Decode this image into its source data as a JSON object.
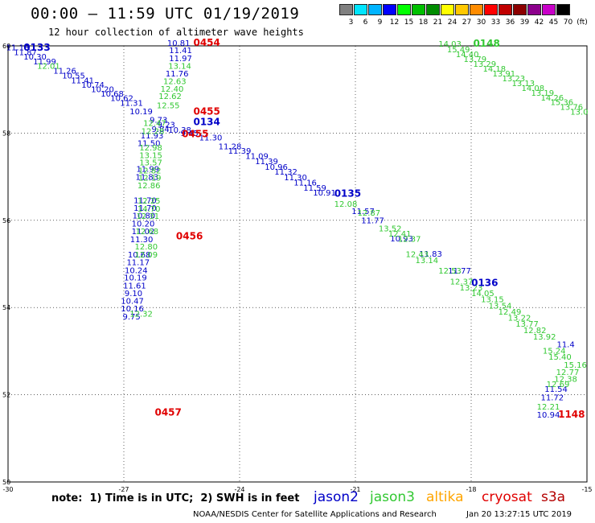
{
  "header": {
    "title": "00:00 — 11:59 UTC 01/19/2019",
    "subtitle": "12 hour collection of altimeter wave heights"
  },
  "legend": {
    "unit": "(ft)",
    "bins": [
      {
        "label": "3",
        "color": "#808080"
      },
      {
        "label": "6",
        "color": "#00e5ff"
      },
      {
        "label": "9",
        "color": "#00b4ff"
      },
      {
        "label": "12",
        "color": "#0000ff"
      },
      {
        "label": "15",
        "color": "#00ff00"
      },
      {
        "label": "18",
        "color": "#00c000"
      },
      {
        "label": "21",
        "color": "#008c00"
      },
      {
        "label": "24",
        "color": "#ffff00"
      },
      {
        "label": "27",
        "color": "#ffc800"
      },
      {
        "label": "30",
        "color": "#ff8c00"
      },
      {
        "label": "33",
        "color": "#ff0000"
      },
      {
        "label": "36",
        "color": "#c00000"
      },
      {
        "label": "39",
        "color": "#8c0000"
      },
      {
        "label": "42",
        "color": "#8c008c"
      },
      {
        "label": "45",
        "color": "#c800c8"
      },
      {
        "label": "70",
        "color": "#000000"
      }
    ]
  },
  "satellite_colors": {
    "jason2": "#0000c8",
    "jason3": "#32c832",
    "altika": "#ffa500",
    "cryosat": "#e00000",
    "s3a": "#b40000"
  },
  "map": {
    "lon_range": [
      -30,
      -15
    ],
    "lat_range": [
      50,
      60
    ],
    "lon_ticks": [
      "-30",
      "-27",
      "-24",
      "-21",
      "-18",
      "-15"
    ],
    "lat_ticks": [
      "50",
      "52",
      "54",
      "56",
      "58",
      "60"
    ],
    "tracks": [
      {
        "sat": "jason2",
        "points": [
          {
            "lon": -29.75,
            "lat": 59.9,
            "v": "11.13"
          },
          {
            "lon": -29.55,
            "lat": 59.79,
            "v": "11.87"
          },
          {
            "lon": -29.3,
            "lat": 59.69,
            "v": "10.30"
          },
          {
            "lon": -29.05,
            "lat": 59.58,
            "v": "11.99"
          },
          {
            "lon": -28.53,
            "lat": 59.36,
            "v": "11.26"
          },
          {
            "lon": -28.3,
            "lat": 59.25,
            "v": "10.55"
          },
          {
            "lon": -28.07,
            "lat": 59.14,
            "v": "11.41"
          },
          {
            "lon": -27.8,
            "lat": 59.04,
            "v": "10.74"
          },
          {
            "lon": -27.55,
            "lat": 58.94,
            "v": "10.20"
          },
          {
            "lon": -27.3,
            "lat": 58.84,
            "v": "10.68"
          },
          {
            "lon": -27.05,
            "lat": 58.74,
            "v": "10.62"
          },
          {
            "lon": -26.8,
            "lat": 58.63,
            "v": "11.31"
          },
          {
            "lon": -26.55,
            "lat": 58.43,
            "v": "10.19"
          },
          {
            "lon": -26.1,
            "lat": 58.24,
            "v": "9.73"
          },
          {
            "lon": -25.9,
            "lat": 58.13,
            "v": "9.23"
          },
          {
            "lon": -25.55,
            "lat": 58.01,
            "v": "10.38"
          },
          {
            "lon": -25.3,
            "lat": 57.93,
            "v": "9.45"
          },
          {
            "lon": -24.75,
            "lat": 57.83,
            "v": "11.30"
          },
          {
            "lon": -24.25,
            "lat": 57.63,
            "v": "11.28"
          },
          {
            "lon": -24.0,
            "lat": 57.53,
            "v": "11.39"
          },
          {
            "lon": -23.55,
            "lat": 57.41,
            "v": "11.09"
          },
          {
            "lon": -23.3,
            "lat": 57.29,
            "v": "11.39"
          },
          {
            "lon": -23.05,
            "lat": 57.16,
            "v": "10.96"
          },
          {
            "lon": -22.8,
            "lat": 57.05,
            "v": "11.32"
          },
          {
            "lon": -22.55,
            "lat": 56.92,
            "v": "11.30"
          },
          {
            "lon": -22.3,
            "lat": 56.8,
            "v": "11.16"
          },
          {
            "lon": -22.05,
            "lat": 56.68,
            "v": "11.59"
          },
          {
            "lon": -21.8,
            "lat": 56.57,
            "v": "10.91"
          },
          {
            "lon": -20.8,
            "lat": 56.14,
            "v": "11.57"
          },
          {
            "lon": -20.55,
            "lat": 55.93,
            "v": "11.77"
          },
          {
            "lon": -19.8,
            "lat": 55.52,
            "v": "10.93"
          },
          {
            "lon": -19.05,
            "lat": 55.17,
            "v": "11.83"
          },
          {
            "lon": -18.3,
            "lat": 54.78,
            "v": "11.77"
          },
          {
            "lon": -15.55,
            "lat": 53.09,
            "v": "11.4"
          },
          {
            "lon": -15.8,
            "lat": 52.07,
            "v": "11.54"
          },
          {
            "lon": -15.9,
            "lat": 51.87,
            "v": "11.72"
          },
          {
            "lon": -16.0,
            "lat": 51.48,
            "v": "10.94"
          },
          {
            "lon": -25.58,
            "lat": 60.0,
            "v": "10.81"
          },
          {
            "lon": -25.53,
            "lat": 59.83,
            "v": "11.41"
          },
          {
            "lon": -25.53,
            "lat": 59.65,
            "v": "11.97"
          },
          {
            "lon": -25.62,
            "lat": 59.3,
            "v": "11.76"
          },
          {
            "lon": -26.05,
            "lat": 58.03,
            "v": "9.84"
          },
          {
            "lon": -26.27,
            "lat": 57.88,
            "v": "11.93"
          },
          {
            "lon": -26.35,
            "lat": 57.7,
            "v": "11.50"
          },
          {
            "lon": -26.38,
            "lat": 57.11,
            "v": "11.99"
          },
          {
            "lon": -26.4,
            "lat": 56.93,
            "v": "11.83"
          },
          {
            "lon": -26.45,
            "lat": 56.39,
            "v": "11.70"
          },
          {
            "lon": -26.45,
            "lat": 56.22,
            "v": "11.70"
          },
          {
            "lon": -26.48,
            "lat": 56.04,
            "v": "10.80"
          },
          {
            "lon": -26.5,
            "lat": 55.86,
            "v": "10.20"
          },
          {
            "lon": -26.5,
            "lat": 55.68,
            "v": "11.02"
          },
          {
            "lon": -26.54,
            "lat": 55.5,
            "v": "11.30"
          },
          {
            "lon": -26.6,
            "lat": 55.15,
            "v": "10.68"
          },
          {
            "lon": -26.63,
            "lat": 54.97,
            "v": "11.17"
          },
          {
            "lon": -26.68,
            "lat": 54.79,
            "v": "10.24"
          },
          {
            "lon": -26.7,
            "lat": 54.62,
            "v": "10.19"
          },
          {
            "lon": -26.72,
            "lat": 54.44,
            "v": "11.61"
          },
          {
            "lon": -26.75,
            "lat": 54.26,
            "v": "9.10"
          },
          {
            "lon": -26.78,
            "lat": 54.09,
            "v": "10.47"
          },
          {
            "lon": -26.78,
            "lat": 53.91,
            "v": "10.16"
          },
          {
            "lon": -26.8,
            "lat": 53.73,
            "v": "9.75"
          }
        ]
      },
      {
        "sat": "jason3",
        "points": [
          {
            "lon": -28.95,
            "lat": 59.47,
            "v": "12.01"
          },
          {
            "lon": -25.55,
            "lat": 59.47,
            "v": "13.14"
          },
          {
            "lon": -25.68,
            "lat": 59.12,
            "v": "12.63"
          },
          {
            "lon": -25.75,
            "lat": 58.95,
            "v": "12.40"
          },
          {
            "lon": -25.8,
            "lat": 58.78,
            "v": "12.62"
          },
          {
            "lon": -25.85,
            "lat": 58.57,
            "v": "12.55"
          },
          {
            "lon": -26.2,
            "lat": 58.16,
            "v": "12.47"
          },
          {
            "lon": -26.25,
            "lat": 57.98,
            "v": "12.28"
          },
          {
            "lon": -26.3,
            "lat": 57.6,
            "v": "12.98"
          },
          {
            "lon": -26.3,
            "lat": 57.43,
            "v": "13.15"
          },
          {
            "lon": -26.3,
            "lat": 57.26,
            "v": "13.57"
          },
          {
            "lon": -26.33,
            "lat": 57.08,
            "v": "12.82"
          },
          {
            "lon": -26.33,
            "lat": 56.91,
            "v": "12.19"
          },
          {
            "lon": -26.35,
            "lat": 56.73,
            "v": "12.86"
          },
          {
            "lon": -26.35,
            "lat": 56.38,
            "v": "12.25"
          },
          {
            "lon": -26.35,
            "lat": 56.2,
            "v": "14.70"
          },
          {
            "lon": -26.38,
            "lat": 56.03,
            "v": "12.31"
          },
          {
            "lon": -26.4,
            "lat": 55.68,
            "v": "12.68"
          },
          {
            "lon": -26.42,
            "lat": 55.33,
            "v": "12.80"
          },
          {
            "lon": -26.42,
            "lat": 55.15,
            "v": "12.09"
          },
          {
            "lon": -26.55,
            "lat": 53.79,
            "v": "12.32"
          },
          {
            "lon": -21.25,
            "lat": 56.31,
            "v": "12.08"
          },
          {
            "lon": -20.65,
            "lat": 56.11,
            "v": "12.87"
          },
          {
            "lon": -20.1,
            "lat": 55.75,
            "v": "13.52"
          },
          {
            "lon": -19.85,
            "lat": 55.63,
            "v": "12.41"
          },
          {
            "lon": -19.6,
            "lat": 55.51,
            "v": "12.37"
          },
          {
            "lon": -19.4,
            "lat": 55.16,
            "v": "12.43"
          },
          {
            "lon": -19.15,
            "lat": 55.02,
            "v": "13.14"
          },
          {
            "lon": -18.55,
            "lat": 54.78,
            "v": "12.53"
          },
          {
            "lon": -18.25,
            "lat": 54.53,
            "v": "12.37"
          },
          {
            "lon": -18.0,
            "lat": 54.39,
            "v": "13.23"
          },
          {
            "lon": -17.7,
            "lat": 54.26,
            "v": "14.05"
          },
          {
            "lon": -17.45,
            "lat": 54.12,
            "v": "13.15"
          },
          {
            "lon": -17.25,
            "lat": 53.98,
            "v": "13.54"
          },
          {
            "lon": -17.0,
            "lat": 53.84,
            "v": "12.49"
          },
          {
            "lon": -16.75,
            "lat": 53.7,
            "v": "13.22"
          },
          {
            "lon": -16.55,
            "lat": 53.56,
            "v": "13.77"
          },
          {
            "lon": -16.35,
            "lat": 53.41,
            "v": "12.82"
          },
          {
            "lon": -16.1,
            "lat": 53.27,
            "v": "13.92"
          },
          {
            "lon": -15.85,
            "lat": 52.94,
            "v": "15.24"
          },
          {
            "lon": -15.7,
            "lat": 52.8,
            "v": "15.40"
          },
          {
            "lon": -15.3,
            "lat": 52.62,
            "v": "15.16"
          },
          {
            "lon": -15.5,
            "lat": 52.45,
            "v": "12.77"
          },
          {
            "lon": -15.55,
            "lat": 52.3,
            "v": "12.38"
          },
          {
            "lon": -15.75,
            "lat": 52.18,
            "v": "12.69"
          },
          {
            "lon": -16.0,
            "lat": 51.66,
            "v": "12.21"
          },
          {
            "lon": -18.55,
            "lat": 59.98,
            "v": "14.03"
          },
          {
            "lon": -18.33,
            "lat": 59.85,
            "v": "15.49"
          },
          {
            "lon": -18.1,
            "lat": 59.74,
            "v": "14.40"
          },
          {
            "lon": -17.9,
            "lat": 59.63,
            "v": "13.79"
          },
          {
            "lon": -17.65,
            "lat": 59.52,
            "v": "13.29"
          },
          {
            "lon": -17.4,
            "lat": 59.41,
            "v": "14.18"
          },
          {
            "lon": -17.15,
            "lat": 59.3,
            "v": "13.91"
          },
          {
            "lon": -16.9,
            "lat": 59.19,
            "v": "13.23"
          },
          {
            "lon": -16.65,
            "lat": 59.08,
            "v": "13.13"
          },
          {
            "lon": -16.4,
            "lat": 58.97,
            "v": "14.08"
          },
          {
            "lon": -16.15,
            "lat": 58.86,
            "v": "13.19"
          },
          {
            "lon": -15.9,
            "lat": 58.75,
            "v": "14.26"
          },
          {
            "lon": -15.65,
            "lat": 58.64,
            "v": "15.36"
          },
          {
            "lon": -15.4,
            "lat": 58.53,
            "v": "13.76"
          },
          {
            "lon": -15.2,
            "lat": 58.42,
            "v": "13.0"
          }
        ]
      }
    ],
    "passes": [
      {
        "sat": "jason2",
        "lon": -29.25,
        "lat": 59.89,
        "label": "0133"
      },
      {
        "sat": "jason2",
        "lon": -24.85,
        "lat": 58.18,
        "label": "0134"
      },
      {
        "sat": "jason2",
        "lon": -21.2,
        "lat": 56.54,
        "label": "0135"
      },
      {
        "sat": "jason2",
        "lon": -17.65,
        "lat": 54.49,
        "label": "0136"
      },
      {
        "sat": "jason3",
        "lon": -17.6,
        "lat": 59.98,
        "label": "0148"
      },
      {
        "sat": "cryosat",
        "lon": -24.85,
        "lat": 60.0,
        "label": "0454"
      },
      {
        "sat": "cryosat",
        "lon": -24.85,
        "lat": 58.42,
        "label": "0455"
      },
      {
        "sat": "cryosat",
        "lon": -25.15,
        "lat": 57.91,
        "label": "0455"
      },
      {
        "sat": "cryosat",
        "lon": -25.3,
        "lat": 55.56,
        "label": "0456"
      },
      {
        "sat": "cryosat",
        "lon": -25.85,
        "lat": 51.52,
        "label": "0457"
      },
      {
        "sat": "cryosat",
        "lon": -15.4,
        "lat": 51.48,
        "label": "1148"
      }
    ]
  },
  "footer": {
    "note": "note:  1) Time is in UTC;  2) SWH is in feet",
    "satellites": [
      {
        "key": "jason2",
        "label": "jason2"
      },
      {
        "key": "jason3",
        "label": "jason3"
      },
      {
        "key": "altika",
        "label": "altika"
      },
      {
        "key": "cryosat",
        "label": "cryosat"
      },
      {
        "key": "s3a",
        "label": "s3a"
      }
    ],
    "credit": "NOAA/NESDIS Center for Satellite Applications and Research",
    "generated": "Jan 20 13:27:15 UTC 2019"
  }
}
